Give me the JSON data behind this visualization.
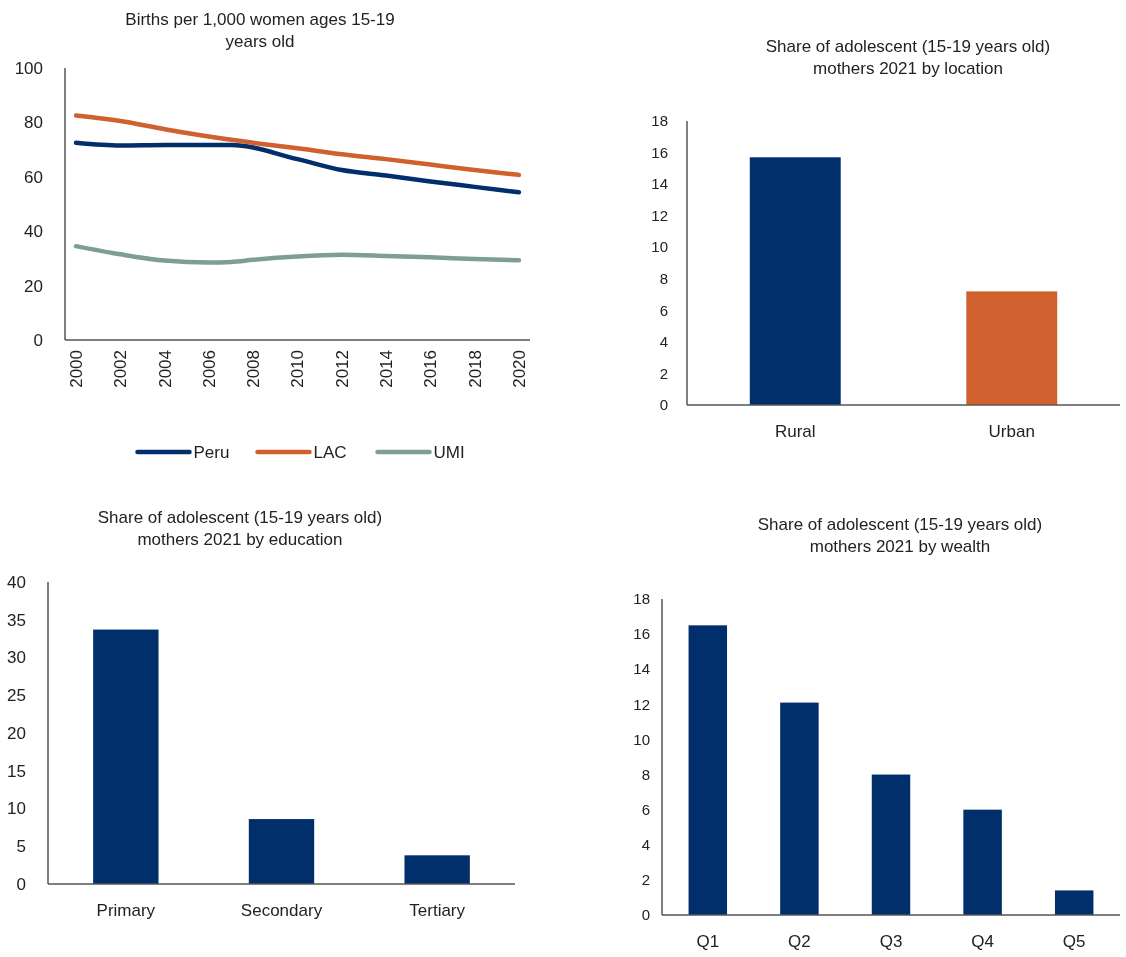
{
  "chart_data": [
    {
      "type": "line",
      "title": "Births per 1,000 women ages 15-19 years old",
      "xlim": [
        1999.5,
        2020.5
      ],
      "xticks": [
        2000,
        2002,
        2004,
        2006,
        2008,
        2010,
        2012,
        2014,
        2016,
        2018,
        2020
      ],
      "ylim": [
        0,
        100
      ],
      "yticks": [
        0,
        20,
        40,
        60,
        80,
        100
      ],
      "legend": "bottom",
      "series": [
        {
          "name": "Peru",
          "color": "#002f6c",
          "x": [
            2000,
            2002,
            2004,
            2006,
            2007,
            2010,
            2012,
            2014,
            2016,
            2018,
            2020
          ],
          "values": [
            72.5,
            71.5,
            71.7,
            71.7,
            71.7,
            66.5,
            62.5,
            60.5,
            58.3,
            56.3,
            54.3
          ]
        },
        {
          "name": "LAC",
          "color": "#d0602d",
          "x": [
            2000,
            2002,
            2004,
            2006,
            2008,
            2010,
            2012,
            2014,
            2016,
            2018,
            2020
          ],
          "values": [
            82.5,
            80.5,
            77.5,
            74.8,
            72.5,
            70.5,
            68.3,
            66.5,
            64.5,
            62.5,
            60.7
          ]
        },
        {
          "name": "UMI",
          "color": "#7d9e92",
          "x": [
            2000,
            2002,
            2004,
            2006,
            2007,
            2008,
            2010,
            2012,
            2014,
            2016,
            2018,
            2020
          ],
          "values": [
            34.5,
            31.5,
            29.2,
            28.5,
            28.7,
            29.5,
            30.7,
            31.3,
            30.9,
            30.4,
            29.8,
            29.3
          ]
        }
      ]
    },
    {
      "type": "bar",
      "title": "Share of adolescent (15-19 years old) mothers 2021 by location",
      "categories": [
        "Rural",
        "Urban"
      ],
      "values": [
        15.7,
        7.2
      ],
      "colors": [
        "#002f6c",
        "#d0602d"
      ],
      "ylim": [
        0,
        18
      ],
      "yticks": [
        0,
        2,
        4,
        6,
        8,
        10,
        12,
        14,
        16,
        18
      ]
    },
    {
      "type": "bar",
      "title": "Share of adolescent (15-19 years old) mothers 2021 by education",
      "categories": [
        "Primary",
        "Secondary",
        "Tertiary"
      ],
      "values": [
        33.7,
        8.6,
        3.8
      ],
      "color": "#002f6c",
      "ylim": [
        0,
        40
      ],
      "yticks": [
        0,
        5,
        10,
        15,
        20,
        25,
        30,
        35,
        40
      ]
    },
    {
      "type": "bar",
      "title": "Share of adolescent (15-19 years old) mothers 2021 by wealth",
      "categories": [
        "Q1",
        "Q2",
        "Q3",
        "Q4",
        "Q5"
      ],
      "values": [
        16.5,
        12.1,
        8.0,
        6.0,
        1.4
      ],
      "color": "#002f6c",
      "ylim": [
        0,
        18
      ],
      "yticks": [
        0,
        2,
        4,
        6,
        8,
        10,
        12,
        14,
        16,
        18
      ]
    }
  ]
}
